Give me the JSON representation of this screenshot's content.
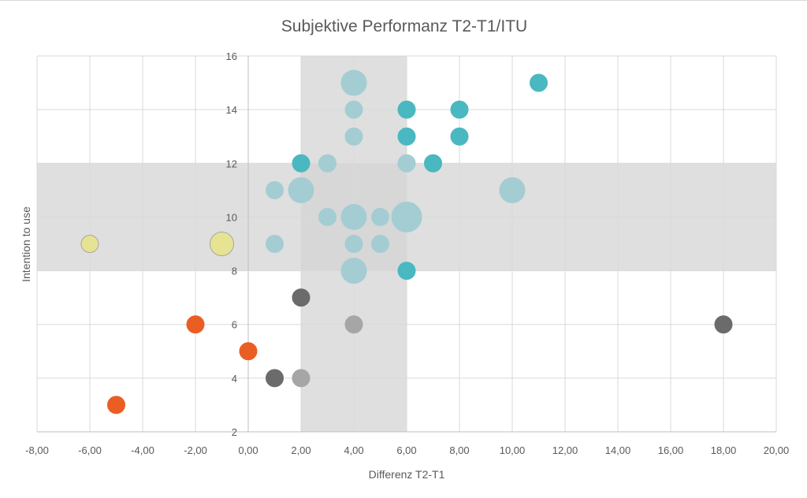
{
  "chart_data": {
    "type": "scatter",
    "title": "Subjektive Performanz T2-T1/ITU",
    "xlabel": "Differenz T2-T1",
    "ylabel": "Intention to use",
    "xlim": [
      -8,
      20
    ],
    "ylim": [
      2,
      16
    ],
    "x_ticks": [
      "-8,00",
      "-6,00",
      "-4,00",
      "-2,00",
      "0,00",
      "2,00",
      "4,00",
      "6,00",
      "8,00",
      "10,00",
      "12,00",
      "14,00",
      "16,00",
      "18,00",
      "20,00"
    ],
    "y_ticks": [
      "2",
      "4",
      "6",
      "8",
      "10",
      "12",
      "14",
      "16"
    ],
    "grid": true,
    "bands": [
      {
        "axis": "x",
        "from": 2,
        "to": 6,
        "color": "#d4d4d4"
      },
      {
        "axis": "y",
        "from": 8,
        "to": 12,
        "color": "#d4d4d4"
      }
    ],
    "colors": {
      "teal": "#4ab8c0",
      "light_teal": "#a3cdd2",
      "yellow": "#e6e492",
      "orange": "#eb5e23",
      "dark_gray": "#6b6b6b",
      "light_gray": "#a6a6a6"
    },
    "points": [
      {
        "x": 4,
        "y": 15,
        "r": 16,
        "c": "light_teal"
      },
      {
        "x": 11,
        "y": 15,
        "r": 11,
        "c": "teal"
      },
      {
        "x": 4,
        "y": 14,
        "r": 11,
        "c": "light_teal"
      },
      {
        "x": 6,
        "y": 14,
        "r": 11,
        "c": "teal"
      },
      {
        "x": 8,
        "y": 14,
        "r": 11,
        "c": "teal"
      },
      {
        "x": 4,
        "y": 13,
        "r": 11,
        "c": "light_teal"
      },
      {
        "x": 6,
        "y": 13,
        "r": 11,
        "c": "teal"
      },
      {
        "x": 8,
        "y": 13,
        "r": 11,
        "c": "teal"
      },
      {
        "x": 2,
        "y": 12,
        "r": 11,
        "c": "teal"
      },
      {
        "x": 3,
        "y": 12,
        "r": 11,
        "c": "light_teal"
      },
      {
        "x": 6,
        "y": 12,
        "r": 11,
        "c": "light_teal"
      },
      {
        "x": 7,
        "y": 12,
        "r": 11,
        "c": "teal"
      },
      {
        "x": 1,
        "y": 11,
        "r": 11,
        "c": "light_teal"
      },
      {
        "x": 2,
        "y": 11,
        "r": 16,
        "c": "light_teal"
      },
      {
        "x": 10,
        "y": 11,
        "r": 16,
        "c": "light_teal"
      },
      {
        "x": 3,
        "y": 10,
        "r": 11,
        "c": "light_teal"
      },
      {
        "x": 4,
        "y": 10,
        "r": 16,
        "c": "light_teal"
      },
      {
        "x": 5,
        "y": 10,
        "r": 11,
        "c": "light_teal"
      },
      {
        "x": 6,
        "y": 10,
        "r": 19,
        "c": "light_teal"
      },
      {
        "x": -6,
        "y": 9,
        "r": 11,
        "c": "yellow"
      },
      {
        "x": -1,
        "y": 9,
        "r": 15,
        "c": "yellow"
      },
      {
        "x": 1,
        "y": 9,
        "r": 11,
        "c": "light_teal"
      },
      {
        "x": 4,
        "y": 9,
        "r": 11,
        "c": "light_teal"
      },
      {
        "x": 5,
        "y": 9,
        "r": 11,
        "c": "light_teal"
      },
      {
        "x": 4,
        "y": 8,
        "r": 16,
        "c": "light_teal"
      },
      {
        "x": 6,
        "y": 8,
        "r": 11,
        "c": "teal"
      },
      {
        "x": 2,
        "y": 7,
        "r": 11,
        "c": "dark_gray"
      },
      {
        "x": -2,
        "y": 6,
        "r": 11,
        "c": "orange"
      },
      {
        "x": 4,
        "y": 6,
        "r": 11,
        "c": "light_gray"
      },
      {
        "x": 18,
        "y": 6,
        "r": 11,
        "c": "dark_gray"
      },
      {
        "x": 0,
        "y": 5,
        "r": 11,
        "c": "orange"
      },
      {
        "x": 1,
        "y": 4,
        "r": 11,
        "c": "dark_gray"
      },
      {
        "x": 2,
        "y": 4,
        "r": 11,
        "c": "light_gray"
      },
      {
        "x": -5,
        "y": 3,
        "r": 11,
        "c": "orange"
      }
    ]
  }
}
